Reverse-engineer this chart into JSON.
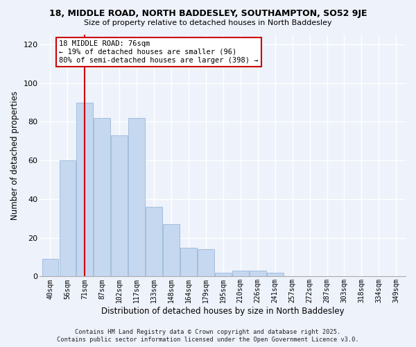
{
  "title1": "18, MIDDLE ROAD, NORTH BADDESLEY, SOUTHAMPTON, SO52 9JE",
  "title2": "Size of property relative to detached houses in North Baddesley",
  "xlabel": "Distribution of detached houses by size in North Baddesley",
  "ylabel": "Number of detached properties",
  "bar_labels": [
    "40sqm",
    "56sqm",
    "71sqm",
    "87sqm",
    "102sqm",
    "117sqm",
    "133sqm",
    "148sqm",
    "164sqm",
    "179sqm",
    "195sqm",
    "210sqm",
    "226sqm",
    "241sqm",
    "257sqm",
    "272sqm",
    "287sqm",
    "303sqm",
    "318sqm",
    "334sqm",
    "349sqm"
  ],
  "bar_values": [
    9,
    60,
    90,
    82,
    73,
    82,
    36,
    27,
    15,
    14,
    2,
    3,
    3,
    2,
    0,
    0,
    0,
    0,
    0,
    0,
    0
  ],
  "bar_color": "#c5d8f0",
  "bar_edge_color": "#9ab8d8",
  "vline_x": 2,
  "vline_color": "#cc0000",
  "ylim": [
    0,
    125
  ],
  "yticks": [
    0,
    20,
    40,
    60,
    80,
    100,
    120
  ],
  "annotation_title": "18 MIDDLE ROAD: 76sqm",
  "annotation_line1": "← 19% of detached houses are smaller (96)",
  "annotation_line2": "80% of semi-detached houses are larger (398) →",
  "annotation_box_color": "#ffffff",
  "annotation_box_edge": "#cc0000",
  "footer1": "Contains HM Land Registry data © Crown copyright and database right 2025.",
  "footer2": "Contains public sector information licensed under the Open Government Licence v3.0.",
  "bg_color": "#eef2fb"
}
